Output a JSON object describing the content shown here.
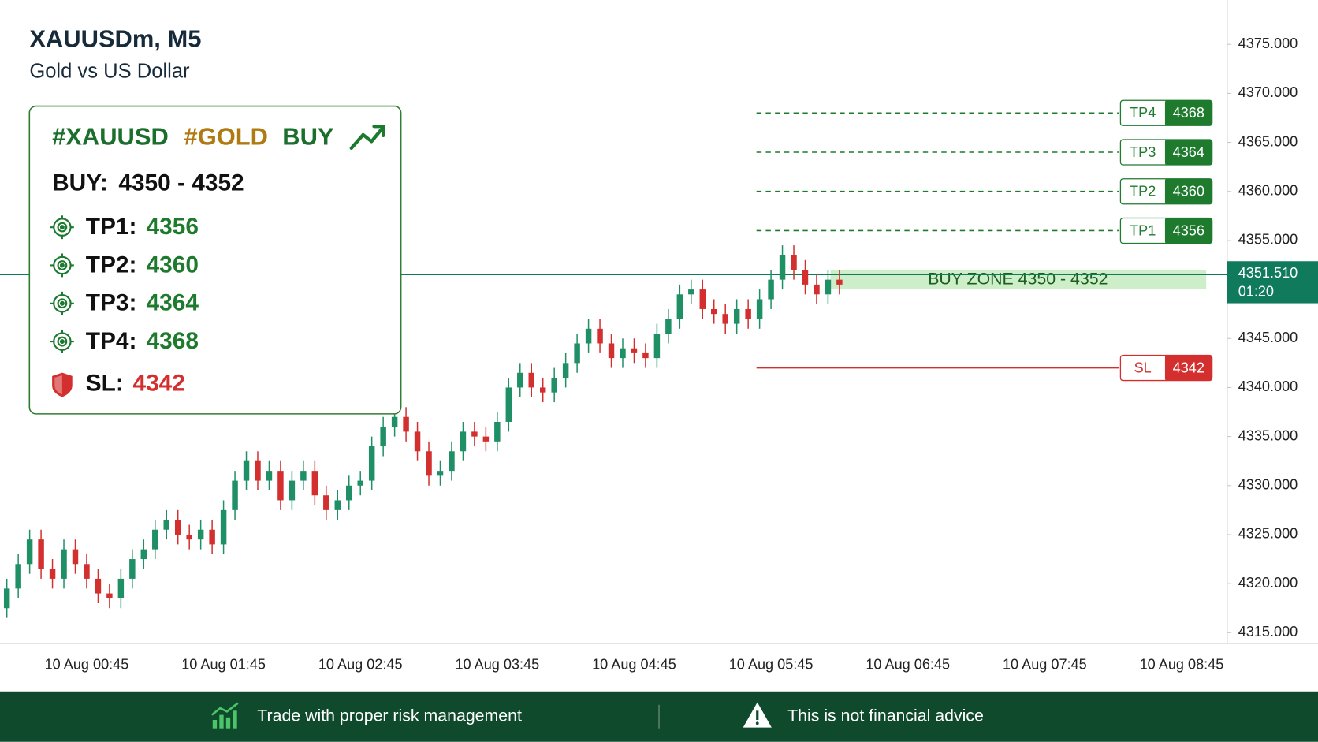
{
  "chart_data": {
    "type": "candlestick",
    "title": "XAUUSDm, M5",
    "subtitle": "Gold vs US Dollar",
    "up_color": "#1f8f66",
    "down_color": "#d32f2f",
    "x": [
      "10 Aug 00:10",
      "10 Aug 00:15",
      "10 Aug 00:20",
      "10 Aug 00:25",
      "10 Aug 00:30",
      "10 Aug 00:35",
      "10 Aug 00:40",
      "10 Aug 00:45",
      "10 Aug 00:50",
      "10 Aug 00:55",
      "10 Aug 01:00",
      "10 Aug 01:05",
      "10 Aug 01:10",
      "10 Aug 01:15",
      "10 Aug 01:20",
      "10 Aug 01:25",
      "10 Aug 01:30",
      "10 Aug 01:35",
      "10 Aug 01:40",
      "10 Aug 01:45",
      "10 Aug 01:50",
      "10 Aug 01:55",
      "10 Aug 02:00",
      "10 Aug 02:05",
      "10 Aug 02:10",
      "10 Aug 02:15",
      "10 Aug 02:20",
      "10 Aug 02:25",
      "10 Aug 02:30",
      "10 Aug 02:35",
      "10 Aug 02:40",
      "10 Aug 02:45",
      "10 Aug 02:50",
      "10 Aug 02:55",
      "10 Aug 03:00",
      "10 Aug 03:05",
      "10 Aug 03:10",
      "10 Aug 03:15",
      "10 Aug 03:20",
      "10 Aug 03:25",
      "10 Aug 03:30",
      "10 Aug 03:35",
      "10 Aug 03:40",
      "10 Aug 03:45",
      "10 Aug 03:50",
      "10 Aug 03:55",
      "10 Aug 04:00",
      "10 Aug 04:05",
      "10 Aug 04:10",
      "10 Aug 04:15",
      "10 Aug 04:20",
      "10 Aug 04:25",
      "10 Aug 04:30",
      "10 Aug 04:35",
      "10 Aug 04:40",
      "10 Aug 04:45",
      "10 Aug 04:50",
      "10 Aug 04:55",
      "10 Aug 05:00",
      "10 Aug 05:05",
      "10 Aug 05:10",
      "10 Aug 05:15",
      "10 Aug 05:20",
      "10 Aug 05:25",
      "10 Aug 05:30",
      "10 Aug 05:35",
      "10 Aug 05:40",
      "10 Aug 05:45",
      "10 Aug 05:50",
      "10 Aug 05:55",
      "10 Aug 06:00",
      "10 Aug 06:05",
      "10 Aug 06:10",
      "10 Aug 06:15"
    ],
    "open": [
      4317.5,
      4319.5,
      4322,
      4324.5,
      4321.5,
      4320.5,
      4323.5,
      4322,
      4320.5,
      4319,
      4318.5,
      4320.5,
      4322.5,
      4323.5,
      4325.5,
      4326.5,
      4325,
      4324.5,
      4325.5,
      4324,
      4327.5,
      4330.5,
      4332.5,
      4330.5,
      4331.5,
      4328.5,
      4330.5,
      4331.5,
      4329,
      4327.5,
      4328.5,
      4330,
      4330.5,
      4334,
      4336,
      4337,
      4335.5,
      4333.5,
      4331,
      4331.5,
      4333.5,
      4335.5,
      4335,
      4334.5,
      4336.5,
      4340,
      4341.5,
      4340,
      4339.5,
      4341,
      4342.5,
      4344.5,
      4346,
      4344.5,
      4343,
      4344,
      4343.5,
      4343,
      4345.5,
      4347,
      4349.5,
      4350,
      4348,
      4347.5,
      4346.5,
      4348,
      4347,
      4349,
      4351,
      4353.5,
      4352,
      4350.5,
      4349.5,
      4351
    ],
    "high": [
      4320.5,
      4323,
      4325.5,
      4325.5,
      4322.5,
      4324.5,
      4324.5,
      4323,
      4321.5,
      4320,
      4321.5,
      4323.5,
      4324.5,
      4326.5,
      4327.5,
      4327.5,
      4326,
      4326.5,
      4326.5,
      4328.5,
      4331.5,
      4333.5,
      4333.5,
      4332.5,
      4332.5,
      4331.5,
      4332.5,
      4332.5,
      4330,
      4329.5,
      4331,
      4331.5,
      4335,
      4337,
      4338,
      4338,
      4336.5,
      4334.5,
      4332.5,
      4334.5,
      4336.5,
      4336.5,
      4336,
      4337.5,
      4341,
      4342.5,
      4342.5,
      4341,
      4342,
      4343.5,
      4345.5,
      4347,
      4347,
      4345.5,
      4345,
      4345,
      4344.5,
      4346.5,
      4348,
      4350.5,
      4351,
      4351,
      4349,
      4348.5,
      4349,
      4349,
      4350,
      4352,
      4354.5,
      4354.5,
      4353,
      4351.5,
      4352,
      4352
    ],
    "low": [
      4316.5,
      4318.5,
      4321,
      4320.5,
      4319.5,
      4319.5,
      4321,
      4319.5,
      4318,
      4317.5,
      4317.5,
      4319.5,
      4321.5,
      4322.5,
      4324.5,
      4324,
      4323.5,
      4323.5,
      4323,
      4323,
      4326.5,
      4329.5,
      4329.5,
      4329.5,
      4327.5,
      4327.5,
      4329.5,
      4328,
      4326.5,
      4326.5,
      4327.5,
      4329,
      4329.5,
      4333,
      4335,
      4334.5,
      4332.5,
      4330,
      4330,
      4330.5,
      4332.5,
      4334,
      4333.5,
      4333.5,
      4335.5,
      4339,
      4339,
      4338.5,
      4338.5,
      4340,
      4341.5,
      4343.5,
      4343.5,
      4342,
      4342,
      4342.5,
      4342,
      4342,
      4344.5,
      4346,
      4348.5,
      4347,
      4346.5,
      4345.5,
      4345.5,
      4346,
      4346,
      4348,
      4350,
      4351,
      4349.5,
      4348.5,
      4348.5,
      4349.5
    ],
    "close": [
      4319.5,
      4322,
      4324.5,
      4321.5,
      4320.5,
      4323.5,
      4322,
      4320.5,
      4319,
      4318.5,
      4320.5,
      4322.5,
      4323.5,
      4325.5,
      4326.5,
      4325,
      4324.5,
      4325.5,
      4324,
      4327.5,
      4330.5,
      4332.5,
      4330.5,
      4331.5,
      4328.5,
      4330.5,
      4331.5,
      4329,
      4327.5,
      4328.5,
      4330,
      4330.5,
      4334,
      4336,
      4337,
      4335.5,
      4333.5,
      4331,
      4331.5,
      4333.5,
      4335.5,
      4335,
      4334.5,
      4336.5,
      4340,
      4341.5,
      4340,
      4339.5,
      4341,
      4342.5,
      4344.5,
      4346,
      4344.5,
      4343,
      4344,
      4343.5,
      4343,
      4345.5,
      4347,
      4349.5,
      4350,
      4348,
      4347.5,
      4346.5,
      4348,
      4347,
      4349,
      4351,
      4353.5,
      4352,
      4350.5,
      4349.5,
      4351,
      4350.5
    ],
    "xlim": [
      "10 Aug 00:07",
      "10 Aug 09:05"
    ],
    "xticks": [
      "10 Aug 00:45",
      "10 Aug 01:45",
      "10 Aug 02:45",
      "10 Aug 03:45",
      "10 Aug 04:45",
      "10 Aug 05:45",
      "10 Aug 06:45",
      "10 Aug 07:45",
      "10 Aug 08:45"
    ],
    "ylim": [
      4313.9,
      4379.5
    ],
    "yticks": [
      {
        "value": 4315,
        "label": "4315.000"
      },
      {
        "value": 4320,
        "label": "4320.000"
      },
      {
        "value": 4325,
        "label": "4325.000"
      },
      {
        "value": 4330,
        "label": "4330.000"
      },
      {
        "value": 4335,
        "label": "4335.000"
      },
      {
        "value": 4340,
        "label": "4340.000"
      },
      {
        "value": 4345,
        "label": "4345.000"
      },
      {
        "value": 4350,
        "label": "4350.000"
      },
      {
        "value": 4355,
        "label": "4355.000"
      },
      {
        "value": 4360,
        "label": "4360.000"
      },
      {
        "value": 4365,
        "label": "4365.000"
      },
      {
        "value": 4370,
        "label": "4370.000"
      },
      {
        "value": 4375,
        "label": "4375.000"
      }
    ],
    "current_price": {
      "value": 4351.51,
      "label": "4351.510",
      "time_left": "01:20",
      "color": "#0f7a5c"
    },
    "levels": [
      {
        "label": "TP4",
        "value": 4368,
        "color": "#1e7b2e",
        "style": "dashed"
      },
      {
        "label": "TP3",
        "value": 4364,
        "color": "#1e7b2e",
        "style": "dashed"
      },
      {
        "label": "TP2",
        "value": 4360,
        "color": "#1e7b2e",
        "style": "dashed"
      },
      {
        "label": "TP1",
        "value": 4356,
        "color": "#1e7b2e",
        "style": "dashed"
      },
      {
        "label": "SL",
        "value": 4342,
        "color": "#d32f2f",
        "style": "solid"
      }
    ],
    "buy_zone": {
      "label": "BUY ZONE 4350 - 4352",
      "low": 4350,
      "high": 4352,
      "color": "#cdeec8"
    }
  },
  "signal_card": {
    "tags": [
      "#XAUUSD",
      "#GOLD",
      "BUY"
    ],
    "entry_label": "BUY:",
    "entry_range": "4350 - 4352",
    "targets": [
      {
        "label": "TP1:",
        "value": 4356
      },
      {
        "label": "TP2:",
        "value": 4360
      },
      {
        "label": "TP3:",
        "value": 4364
      },
      {
        "label": "TP4:",
        "value": 4368
      }
    ],
    "stop": {
      "label": "SL:",
      "value": 4342
    }
  },
  "footer": {
    "left": "Trade with proper risk management",
    "right": "This is not financial advice"
  }
}
